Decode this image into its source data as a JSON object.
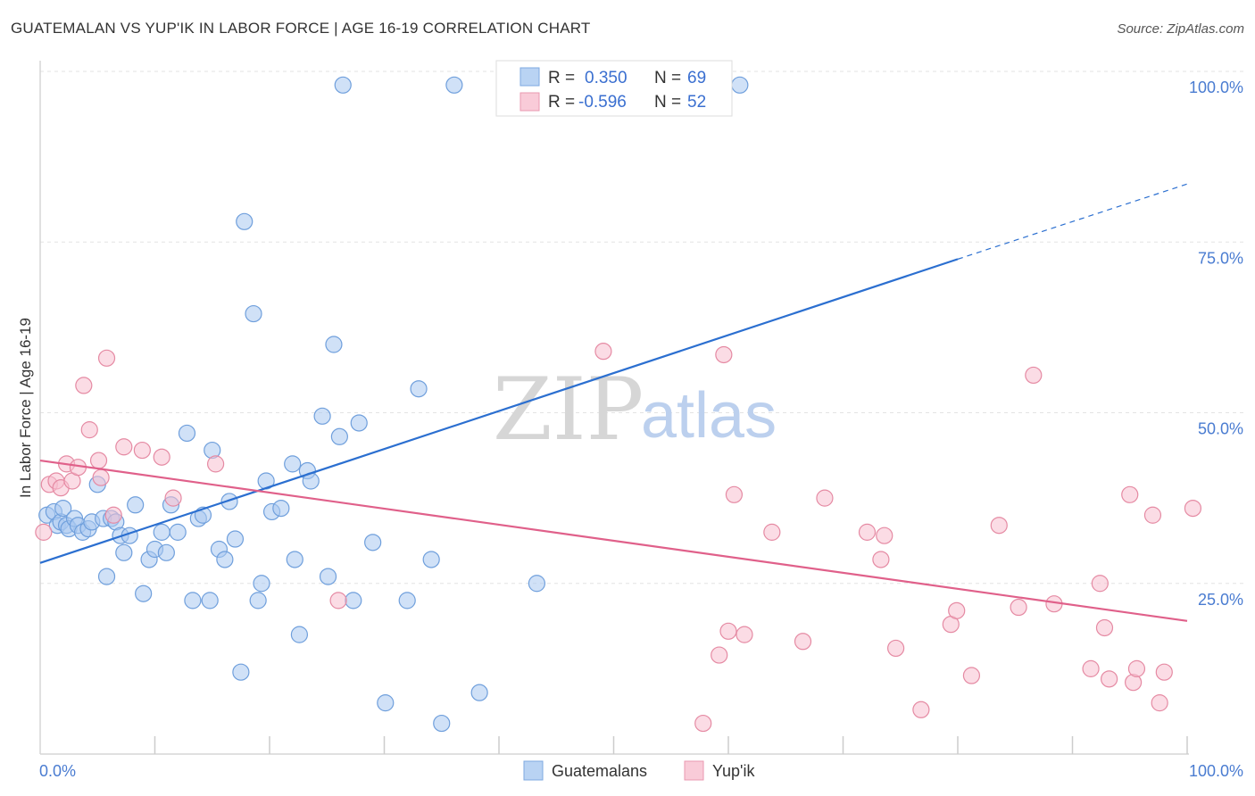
{
  "title": "GUATEMALAN VS YUP'IK IN LABOR FORCE | AGE 16-19 CORRELATION CHART",
  "source": "Source: ZipAtlas.com",
  "watermark": {
    "zip": "ZIP",
    "atlas": "atlas"
  },
  "chart_data": {
    "type": "scatter",
    "title": "GUATEMALAN VS YUP'IK IN LABOR FORCE | AGE 16-19 CORRELATION CHART",
    "xlabel": "",
    "ylabel": "In Labor Force | Age 16-19",
    "xlim": [
      0,
      100
    ],
    "ylim": [
      0,
      100
    ],
    "x_ticks": [
      "0.0%",
      "100.0%"
    ],
    "y_ticks": [
      {
        "value": 25,
        "label": "25.0%"
      },
      {
        "value": 50,
        "label": "50.0%"
      },
      {
        "value": 75,
        "label": "75.0%"
      },
      {
        "value": 100,
        "label": "100.0%"
      }
    ],
    "grid": true,
    "legend_position": "top-center",
    "series": [
      {
        "name": "Guatemalans",
        "color": "#a9c8f0",
        "stroke": "#6f9fdc",
        "line_color": "#2b6fd0",
        "R": "0.350",
        "N": "69",
        "trend": {
          "x0": 0,
          "y0": 28,
          "x1": 80,
          "y1": 72.5,
          "dash_to_x": 100,
          "dash_to_y": 83.5
        },
        "points": [
          [
            0.6,
            35
          ],
          [
            1.2,
            35.5
          ],
          [
            1.5,
            33.5
          ],
          [
            1.8,
            34
          ],
          [
            2.0,
            36
          ],
          [
            2.3,
            33.5
          ],
          [
            2.5,
            33
          ],
          [
            3.0,
            34.5
          ],
          [
            3.3,
            33.5
          ],
          [
            3.7,
            32.5
          ],
          [
            4.2,
            33
          ],
          [
            4.5,
            34
          ],
          [
            5.0,
            39.5
          ],
          [
            5.5,
            34.5
          ],
          [
            5.8,
            26
          ],
          [
            6.2,
            34.5
          ],
          [
            6.6,
            34
          ],
          [
            7.0,
            32
          ],
          [
            7.3,
            29.5
          ],
          [
            7.8,
            32
          ],
          [
            8.3,
            36.5
          ],
          [
            9.0,
            23.5
          ],
          [
            9.5,
            28.5
          ],
          [
            10.0,
            30
          ],
          [
            10.6,
            32.5
          ],
          [
            11.0,
            29.5
          ],
          [
            11.4,
            36.5
          ],
          [
            12.0,
            32.5
          ],
          [
            12.8,
            47
          ],
          [
            13.3,
            22.5
          ],
          [
            13.8,
            34.5
          ],
          [
            14.2,
            35
          ],
          [
            14.8,
            22.5
          ],
          [
            15.0,
            44.5
          ],
          [
            15.6,
            30
          ],
          [
            16.1,
            28.5
          ],
          [
            16.5,
            37
          ],
          [
            17.0,
            31.5
          ],
          [
            17.5,
            12
          ],
          [
            17.8,
            78
          ],
          [
            18.6,
            64.5
          ],
          [
            19.0,
            22.5
          ],
          [
            19.3,
            25
          ],
          [
            19.7,
            40
          ],
          [
            20.2,
            35.5
          ],
          [
            21.0,
            36
          ],
          [
            22.0,
            42.5
          ],
          [
            22.2,
            28.5
          ],
          [
            22.6,
            17.5
          ],
          [
            23.3,
            41.5
          ],
          [
            23.6,
            40
          ],
          [
            24.6,
            49.5
          ],
          [
            25.1,
            26
          ],
          [
            25.6,
            60
          ],
          [
            26.1,
            46.5
          ],
          [
            26.4,
            98
          ],
          [
            27.3,
            22.5
          ],
          [
            27.8,
            48.5
          ],
          [
            29.0,
            31
          ],
          [
            30.1,
            7.5
          ],
          [
            32.0,
            22.5
          ],
          [
            33.0,
            53.5
          ],
          [
            34.1,
            28.5
          ],
          [
            35.0,
            4.5
          ],
          [
            36.1,
            98
          ],
          [
            38.3,
            9
          ],
          [
            43.3,
            25
          ],
          [
            46.0,
            98
          ],
          [
            61.0,
            98
          ]
        ]
      },
      {
        "name": "Yup'ik",
        "color": "#f7c0cf",
        "stroke": "#e58aa3",
        "line_color": "#e0608a",
        "R": "-0.596",
        "N": "52",
        "trend": {
          "x0": 0,
          "y0": 43,
          "x1": 100,
          "y1": 19.5
        },
        "points": [
          [
            0.3,
            32.5
          ],
          [
            0.8,
            39.5
          ],
          [
            1.4,
            40
          ],
          [
            1.8,
            39
          ],
          [
            2.3,
            42.5
          ],
          [
            2.8,
            40
          ],
          [
            3.3,
            42
          ],
          [
            3.8,
            54
          ],
          [
            4.3,
            47.5
          ],
          [
            5.1,
            43
          ],
          [
            5.3,
            40.5
          ],
          [
            5.8,
            58
          ],
          [
            6.4,
            35
          ],
          [
            7.3,
            45
          ],
          [
            8.9,
            44.5
          ],
          [
            10.6,
            43.5
          ],
          [
            11.6,
            37.5
          ],
          [
            15.3,
            42.5
          ],
          [
            26.0,
            22.5
          ],
          [
            49.1,
            59
          ],
          [
            57.8,
            4.5
          ],
          [
            59.2,
            14.5
          ],
          [
            59.6,
            58.5
          ],
          [
            60.0,
            18
          ],
          [
            60.5,
            38
          ],
          [
            61.4,
            17.5
          ],
          [
            63.8,
            32.5
          ],
          [
            66.5,
            16.5
          ],
          [
            68.4,
            37.5
          ],
          [
            72.1,
            32.5
          ],
          [
            73.3,
            28.5
          ],
          [
            73.6,
            32
          ],
          [
            74.6,
            15.5
          ],
          [
            76.8,
            6.5
          ],
          [
            79.4,
            19
          ],
          [
            79.9,
            21
          ],
          [
            81.2,
            11.5
          ],
          [
            83.6,
            33.5
          ],
          [
            85.3,
            21.5
          ],
          [
            86.6,
            55.5
          ],
          [
            88.4,
            22
          ],
          [
            91.6,
            12.5
          ],
          [
            92.4,
            25
          ],
          [
            92.8,
            18.5
          ],
          [
            93.2,
            11
          ],
          [
            95.0,
            38
          ],
          [
            95.3,
            10.5
          ],
          [
            95.6,
            12.5
          ],
          [
            97.0,
            35
          ],
          [
            97.6,
            7.5
          ],
          [
            98.0,
            12
          ],
          [
            100.5,
            36
          ]
        ]
      }
    ]
  },
  "legend": {
    "r_label": "R =",
    "n_label": "N =",
    "items": [
      {
        "r": "0.350",
        "n": "69"
      },
      {
        "r": "-0.596",
        "n": "52"
      }
    ]
  },
  "bottom_legend": [
    "Guatemalans",
    "Yup'ik"
  ]
}
